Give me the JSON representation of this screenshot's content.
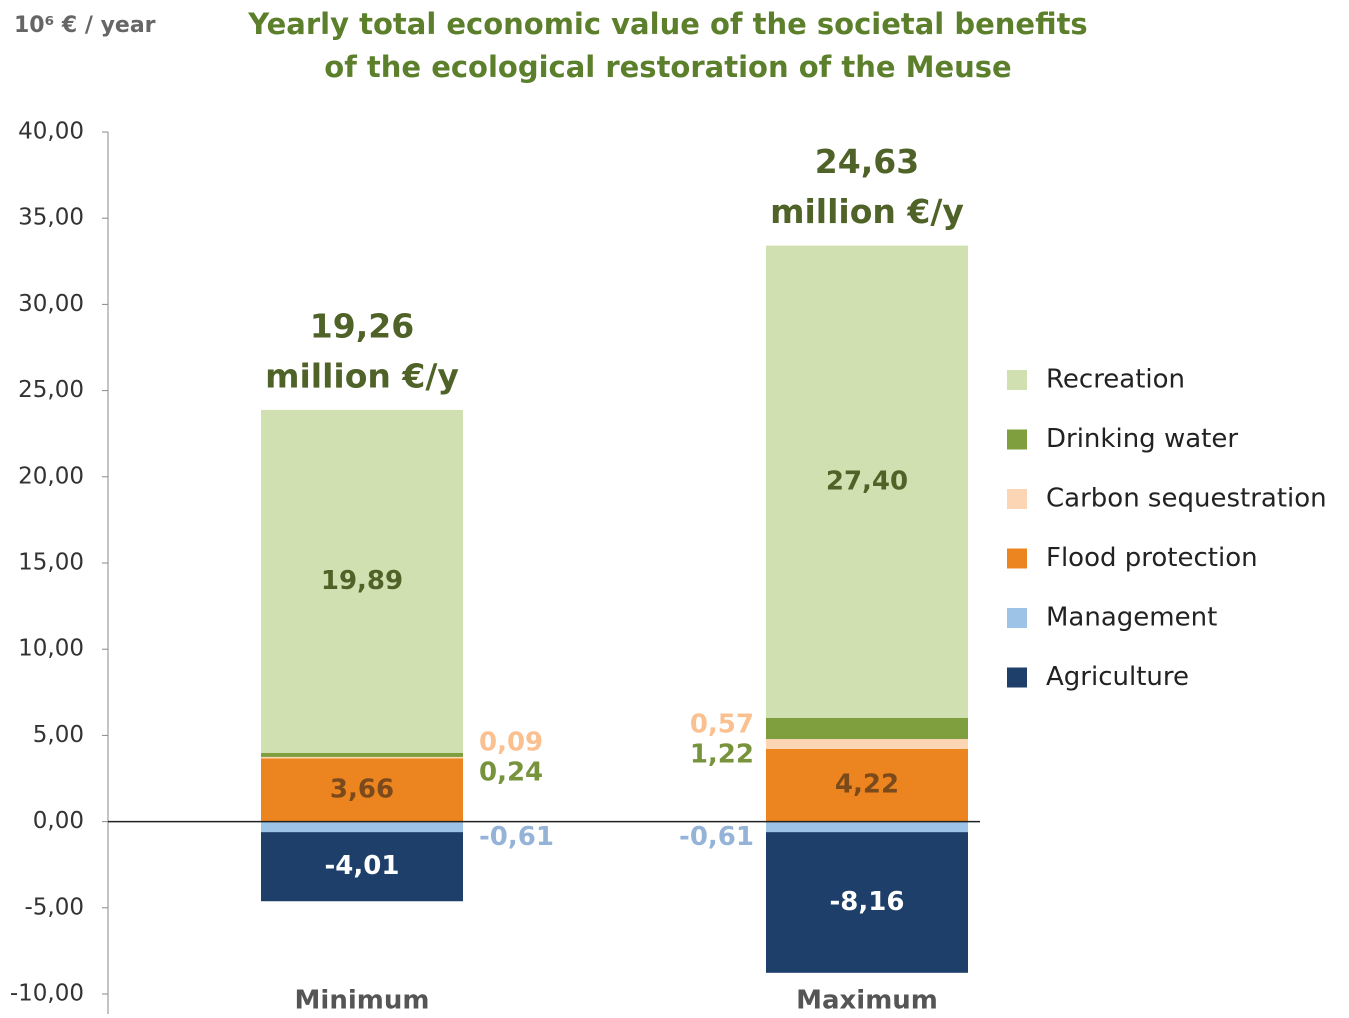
{
  "chart_data": {
    "type": "stacked_bar",
    "title": [
      "Yearly total economic value of the societal benefits",
      "of the ecological restoration of the Meuse"
    ],
    "y_label": "10⁶ € / year",
    "categories": [
      "Minimum",
      "Maximum"
    ],
    "series": [
      {
        "name": "Recreation",
        "color": "#d0e0b0",
        "label_color": "#4f6228",
        "values": [
          19.89,
          27.4
        ],
        "value_labels": [
          "19,89",
          "27,40"
        ]
      },
      {
        "name": "Drinking water",
        "color": "#7f9f3f",
        "label_color": "#77933c",
        "values": [
          0.24,
          1.22
        ],
        "value_labels": [
          "0,24",
          "1,22"
        ]
      },
      {
        "name": "Carbon sequestration",
        "color": "#fcd5b4",
        "label_color": "#fac090",
        "values": [
          0.09,
          0.57
        ],
        "value_labels": [
          "0,09",
          "0,57"
        ]
      },
      {
        "name": "Flood protection",
        "color": "#ec841f",
        "label_color": "#7a4a1c",
        "values": [
          3.66,
          4.22
        ],
        "value_labels": [
          "3,66",
          "4,22"
        ]
      },
      {
        "name": "Management",
        "color": "#9dc3e6",
        "label_color": "#95b3d7",
        "values": [
          -0.61,
          -0.61
        ],
        "value_labels": [
          "-0,61",
          "-0,61"
        ]
      },
      {
        "name": "Agriculture",
        "color": "#1f3f6b",
        "label_color": "#ffffff",
        "values": [
          -4.01,
          -8.16
        ],
        "value_labels": [
          "-4,01",
          "-8,16"
        ]
      }
    ],
    "totals": [
      19.26,
      24.63
    ],
    "total_labels": [
      "19,26",
      "24,63"
    ],
    "total_unit": "million €/y",
    "ylim": [
      -10,
      40
    ],
    "yticks": [
      {
        "value": -10,
        "label": "-10,00"
      },
      {
        "value": -5,
        "label": "-5,00"
      },
      {
        "value": 0,
        "label": "0,00"
      },
      {
        "value": 5,
        "label": "5,00"
      },
      {
        "value": 10,
        "label": "10,00"
      },
      {
        "value": 15,
        "label": "15,00"
      },
      {
        "value": 20,
        "label": "20,00"
      },
      {
        "value": 25,
        "label": "25,00"
      },
      {
        "value": 30,
        "label": "30,00"
      },
      {
        "value": 35,
        "label": "35,00"
      },
      {
        "value": 40,
        "label": "40,00"
      }
    ],
    "grid": false,
    "legend": "right"
  }
}
